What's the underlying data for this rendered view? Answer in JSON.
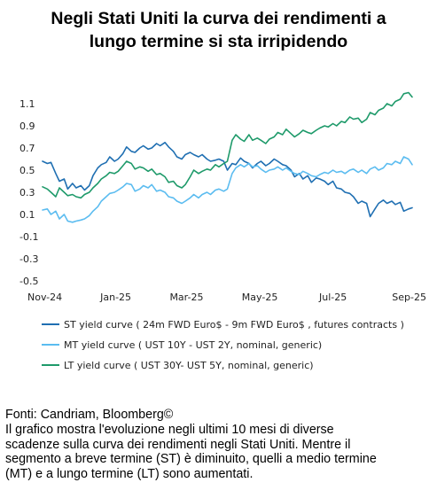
{
  "title_line1": "Negli Stati Uniti la curva dei rendimenti a",
  "title_line2": "lungo termine si sta irripidendo",
  "footer": {
    "source": "Fonti: Candriam, Bloomberg©",
    "lines": [
      "Il grafico mostra l'evoluzione negli ultimi 10 mesi di diverse",
      "scadenze sulla curva dei rendimenti negli Stati Uniti. Mentre il",
      "segmento a breve termine (ST) è diminuito, quelli a medio termine",
      "(MT) e a lungo termine (LT) sono aumentati."
    ]
  },
  "colors": {
    "st": "#1f6fb2",
    "mt": "#5bbcf0",
    "lt": "#1e9a6a"
  },
  "chart_data": {
    "type": "line",
    "title": "Negli Stati Uniti la curva dei rendimenti a lungo termine si sta irripidendo",
    "xlabel": "",
    "ylabel": "",
    "x_ticks": [
      "Nov-24",
      "Jan-25",
      "Mar-25",
      "May-25",
      "Jul-25",
      "Sep-25"
    ],
    "y_ticks": [
      "1.1",
      "0.9",
      "0.7",
      "0.5",
      "0.3",
      "0.1",
      "-0.1",
      "-0.3",
      "-0.5"
    ],
    "ylim": [
      -0.5,
      1.2
    ],
    "xlim": [
      "2024-11-01",
      "2025-09-05"
    ],
    "grid": false,
    "legend_position": "bottom",
    "series": [
      {
        "name": "ST yield curve ( 24m FWD Euro$ - 9m FWD Euro$ , futures contracts )",
        "color": "#1f6fb2",
        "points": [
          [
            "2024-11-01",
            0.58
          ],
          [
            "2024-11-05",
            0.56
          ],
          [
            "2024-11-08",
            0.57
          ],
          [
            "2024-11-12",
            0.47
          ],
          [
            "2024-11-15",
            0.4
          ],
          [
            "2024-11-19",
            0.42
          ],
          [
            "2024-11-22",
            0.33
          ],
          [
            "2024-11-26",
            0.38
          ],
          [
            "2024-11-29",
            0.34
          ],
          [
            "2024-12-03",
            0.36
          ],
          [
            "2024-12-06",
            0.32
          ],
          [
            "2024-12-10",
            0.36
          ],
          [
            "2024-12-13",
            0.45
          ],
          [
            "2024-12-17",
            0.52
          ],
          [
            "2024-12-20",
            0.55
          ],
          [
            "2024-12-24",
            0.57
          ],
          [
            "2024-12-27",
            0.62
          ],
          [
            "2024-12-31",
            0.58
          ],
          [
            "2025-01-03",
            0.6
          ],
          [
            "2025-01-07",
            0.65
          ],
          [
            "2025-01-10",
            0.71
          ],
          [
            "2025-01-14",
            0.67
          ],
          [
            "2025-01-17",
            0.66
          ],
          [
            "2025-01-21",
            0.7
          ],
          [
            "2025-01-24",
            0.72
          ],
          [
            "2025-01-28",
            0.69
          ],
          [
            "2025-01-31",
            0.7
          ],
          [
            "2025-02-04",
            0.74
          ],
          [
            "2025-02-07",
            0.72
          ],
          [
            "2025-02-11",
            0.75
          ],
          [
            "2025-02-14",
            0.71
          ],
          [
            "2025-02-18",
            0.67
          ],
          [
            "2025-02-21",
            0.62
          ],
          [
            "2025-02-25",
            0.6
          ],
          [
            "2025-02-28",
            0.64
          ],
          [
            "2025-03-04",
            0.66
          ],
          [
            "2025-03-07",
            0.64
          ],
          [
            "2025-03-11",
            0.62
          ],
          [
            "2025-03-14",
            0.64
          ],
          [
            "2025-03-18",
            0.6
          ],
          [
            "2025-03-21",
            0.58
          ],
          [
            "2025-03-25",
            0.59
          ],
          [
            "2025-03-28",
            0.6
          ],
          [
            "2025-04-01",
            0.58
          ],
          [
            "2025-04-04",
            0.5
          ],
          [
            "2025-04-08",
            0.56
          ],
          [
            "2025-04-11",
            0.55
          ],
          [
            "2025-04-15",
            0.61
          ],
          [
            "2025-04-18",
            0.58
          ],
          [
            "2025-04-22",
            0.56
          ],
          [
            "2025-04-25",
            0.52
          ],
          [
            "2025-04-29",
            0.56
          ],
          [
            "2025-05-02",
            0.58
          ],
          [
            "2025-05-06",
            0.54
          ],
          [
            "2025-05-09",
            0.56
          ],
          [
            "2025-05-13",
            0.6
          ],
          [
            "2025-05-16",
            0.58
          ],
          [
            "2025-05-20",
            0.55
          ],
          [
            "2025-05-23",
            0.54
          ],
          [
            "2025-05-27",
            0.5
          ],
          [
            "2025-05-30",
            0.44
          ],
          [
            "2025-06-03",
            0.47
          ],
          [
            "2025-06-06",
            0.42
          ],
          [
            "2025-06-10",
            0.45
          ],
          [
            "2025-06-13",
            0.39
          ],
          [
            "2025-06-17",
            0.43
          ],
          [
            "2025-06-20",
            0.42
          ],
          [
            "2025-06-24",
            0.4
          ],
          [
            "2025-06-27",
            0.37
          ],
          [
            "2025-07-01",
            0.4
          ],
          [
            "2025-07-04",
            0.34
          ],
          [
            "2025-07-08",
            0.33
          ],
          [
            "2025-07-11",
            0.3
          ],
          [
            "2025-07-15",
            0.29
          ],
          [
            "2025-07-18",
            0.26
          ],
          [
            "2025-07-22",
            0.2
          ],
          [
            "2025-07-25",
            0.22
          ],
          [
            "2025-07-29",
            0.2
          ],
          [
            "2025-08-01",
            0.08
          ],
          [
            "2025-08-05",
            0.15
          ],
          [
            "2025-08-08",
            0.2
          ],
          [
            "2025-08-12",
            0.23
          ],
          [
            "2025-08-15",
            0.2
          ],
          [
            "2025-08-19",
            0.22
          ],
          [
            "2025-08-22",
            0.19
          ],
          [
            "2025-08-26",
            0.21
          ],
          [
            "2025-08-29",
            0.13
          ],
          [
            "2025-09-02",
            0.15
          ],
          [
            "2025-09-05",
            0.16
          ]
        ]
      },
      {
        "name": "MT yield curve ( UST 10Y - UST 2Y, nominal, generic)",
        "color": "#5bbcf0",
        "points": [
          [
            "2024-11-01",
            0.14
          ],
          [
            "2024-11-05",
            0.15
          ],
          [
            "2024-11-08",
            0.1
          ],
          [
            "2024-11-12",
            0.13
          ],
          [
            "2024-11-15",
            0.06
          ],
          [
            "2024-11-19",
            0.1
          ],
          [
            "2024-11-22",
            0.04
          ],
          [
            "2024-11-26",
            0.03
          ],
          [
            "2024-11-29",
            0.04
          ],
          [
            "2024-12-03",
            0.05
          ],
          [
            "2024-12-06",
            0.06
          ],
          [
            "2024-12-10",
            0.09
          ],
          [
            "2024-12-13",
            0.13
          ],
          [
            "2024-12-17",
            0.17
          ],
          [
            "2024-12-20",
            0.22
          ],
          [
            "2024-12-24",
            0.26
          ],
          [
            "2024-12-27",
            0.29
          ],
          [
            "2024-12-31",
            0.3
          ],
          [
            "2025-01-03",
            0.32
          ],
          [
            "2025-01-07",
            0.35
          ],
          [
            "2025-01-10",
            0.38
          ],
          [
            "2025-01-14",
            0.37
          ],
          [
            "2025-01-17",
            0.31
          ],
          [
            "2025-01-21",
            0.33
          ],
          [
            "2025-01-24",
            0.36
          ],
          [
            "2025-01-28",
            0.34
          ],
          [
            "2025-01-31",
            0.37
          ],
          [
            "2025-02-04",
            0.31
          ],
          [
            "2025-02-07",
            0.32
          ],
          [
            "2025-02-11",
            0.3
          ],
          [
            "2025-02-14",
            0.26
          ],
          [
            "2025-02-18",
            0.25
          ],
          [
            "2025-02-21",
            0.22
          ],
          [
            "2025-02-25",
            0.2
          ],
          [
            "2025-02-28",
            0.22
          ],
          [
            "2025-03-04",
            0.25
          ],
          [
            "2025-03-07",
            0.28
          ],
          [
            "2025-03-11",
            0.25
          ],
          [
            "2025-03-14",
            0.28
          ],
          [
            "2025-03-18",
            0.3
          ],
          [
            "2025-03-21",
            0.28
          ],
          [
            "2025-03-25",
            0.32
          ],
          [
            "2025-03-28",
            0.33
          ],
          [
            "2025-04-01",
            0.31
          ],
          [
            "2025-04-04",
            0.33
          ],
          [
            "2025-04-08",
            0.47
          ],
          [
            "2025-04-11",
            0.52
          ],
          [
            "2025-04-15",
            0.55
          ],
          [
            "2025-04-18",
            0.53
          ],
          [
            "2025-04-22",
            0.56
          ],
          [
            "2025-04-25",
            0.53
          ],
          [
            "2025-04-29",
            0.54
          ],
          [
            "2025-05-02",
            0.51
          ],
          [
            "2025-05-06",
            0.48
          ],
          [
            "2025-05-09",
            0.5
          ],
          [
            "2025-05-13",
            0.51
          ],
          [
            "2025-05-16",
            0.53
          ],
          [
            "2025-05-20",
            0.5
          ],
          [
            "2025-05-23",
            0.52
          ],
          [
            "2025-05-27",
            0.49
          ],
          [
            "2025-05-30",
            0.47
          ],
          [
            "2025-06-03",
            0.46
          ],
          [
            "2025-06-06",
            0.49
          ],
          [
            "2025-06-10",
            0.47
          ],
          [
            "2025-06-13",
            0.45
          ],
          [
            "2025-06-17",
            0.44
          ],
          [
            "2025-06-20",
            0.46
          ],
          [
            "2025-06-24",
            0.48
          ],
          [
            "2025-06-27",
            0.47
          ],
          [
            "2025-07-01",
            0.5
          ],
          [
            "2025-07-04",
            0.48
          ],
          [
            "2025-07-08",
            0.49
          ],
          [
            "2025-07-11",
            0.47
          ],
          [
            "2025-07-15",
            0.5
          ],
          [
            "2025-07-18",
            0.51
          ],
          [
            "2025-07-22",
            0.48
          ],
          [
            "2025-07-25",
            0.5
          ],
          [
            "2025-07-29",
            0.47
          ],
          [
            "2025-08-01",
            0.51
          ],
          [
            "2025-08-05",
            0.53
          ],
          [
            "2025-08-08",
            0.5
          ],
          [
            "2025-08-12",
            0.52
          ],
          [
            "2025-08-15",
            0.56
          ],
          [
            "2025-08-19",
            0.55
          ],
          [
            "2025-08-22",
            0.58
          ],
          [
            "2025-08-26",
            0.56
          ],
          [
            "2025-08-29",
            0.62
          ],
          [
            "2025-09-02",
            0.6
          ],
          [
            "2025-09-05",
            0.55
          ]
        ]
      },
      {
        "name": "LT yield curve ( UST 30Y- UST 5Y, nominal, generic)",
        "color": "#1e9a6a",
        "points": [
          [
            "2024-11-01",
            0.35
          ],
          [
            "2024-11-05",
            0.33
          ],
          [
            "2024-11-08",
            0.3
          ],
          [
            "2024-11-12",
            0.26
          ],
          [
            "2024-11-15",
            0.34
          ],
          [
            "2024-11-19",
            0.3
          ],
          [
            "2024-11-22",
            0.27
          ],
          [
            "2024-11-26",
            0.28
          ],
          [
            "2024-11-29",
            0.26
          ],
          [
            "2024-12-03",
            0.25
          ],
          [
            "2024-12-06",
            0.28
          ],
          [
            "2024-12-10",
            0.3
          ],
          [
            "2024-12-13",
            0.34
          ],
          [
            "2024-12-17",
            0.38
          ],
          [
            "2024-12-20",
            0.42
          ],
          [
            "2024-12-24",
            0.45
          ],
          [
            "2024-12-27",
            0.48
          ],
          [
            "2024-12-31",
            0.47
          ],
          [
            "2025-01-03",
            0.49
          ],
          [
            "2025-01-07",
            0.54
          ],
          [
            "2025-01-10",
            0.58
          ],
          [
            "2025-01-14",
            0.56
          ],
          [
            "2025-01-17",
            0.51
          ],
          [
            "2025-01-21",
            0.53
          ],
          [
            "2025-01-24",
            0.52
          ],
          [
            "2025-01-28",
            0.49
          ],
          [
            "2025-01-31",
            0.51
          ],
          [
            "2025-02-04",
            0.46
          ],
          [
            "2025-02-07",
            0.47
          ],
          [
            "2025-02-11",
            0.44
          ],
          [
            "2025-02-14",
            0.39
          ],
          [
            "2025-02-18",
            0.4
          ],
          [
            "2025-02-21",
            0.36
          ],
          [
            "2025-02-25",
            0.34
          ],
          [
            "2025-02-28",
            0.37
          ],
          [
            "2025-03-04",
            0.44
          ],
          [
            "2025-03-07",
            0.5
          ],
          [
            "2025-03-11",
            0.47
          ],
          [
            "2025-03-14",
            0.49
          ],
          [
            "2025-03-18",
            0.51
          ],
          [
            "2025-03-21",
            0.5
          ],
          [
            "2025-03-25",
            0.55
          ],
          [
            "2025-03-28",
            0.53
          ],
          [
            "2025-04-01",
            0.56
          ],
          [
            "2025-04-04",
            0.58
          ],
          [
            "2025-04-08",
            0.77
          ],
          [
            "2025-04-11",
            0.82
          ],
          [
            "2025-04-15",
            0.78
          ],
          [
            "2025-04-18",
            0.76
          ],
          [
            "2025-04-22",
            0.82
          ],
          [
            "2025-04-25",
            0.77
          ],
          [
            "2025-04-29",
            0.79
          ],
          [
            "2025-05-02",
            0.77
          ],
          [
            "2025-05-06",
            0.74
          ],
          [
            "2025-05-09",
            0.78
          ],
          [
            "2025-05-13",
            0.8
          ],
          [
            "2025-05-16",
            0.84
          ],
          [
            "2025-05-20",
            0.82
          ],
          [
            "2025-05-23",
            0.87
          ],
          [
            "2025-05-27",
            0.83
          ],
          [
            "2025-05-30",
            0.8
          ],
          [
            "2025-06-03",
            0.83
          ],
          [
            "2025-06-06",
            0.86
          ],
          [
            "2025-06-10",
            0.84
          ],
          [
            "2025-06-13",
            0.83
          ],
          [
            "2025-06-17",
            0.86
          ],
          [
            "2025-06-20",
            0.88
          ],
          [
            "2025-06-24",
            0.9
          ],
          [
            "2025-06-27",
            0.89
          ],
          [
            "2025-07-01",
            0.92
          ],
          [
            "2025-07-04",
            0.9
          ],
          [
            "2025-07-08",
            0.94
          ],
          [
            "2025-07-11",
            0.93
          ],
          [
            "2025-07-15",
            0.98
          ],
          [
            "2025-07-18",
            0.96
          ],
          [
            "2025-07-22",
            0.97
          ],
          [
            "2025-07-25",
            0.93
          ],
          [
            "2025-07-29",
            0.96
          ],
          [
            "2025-08-01",
            1.02
          ],
          [
            "2025-08-05",
            1.0
          ],
          [
            "2025-08-08",
            1.04
          ],
          [
            "2025-08-12",
            1.06
          ],
          [
            "2025-08-15",
            1.1
          ],
          [
            "2025-08-19",
            1.08
          ],
          [
            "2025-08-22",
            1.12
          ],
          [
            "2025-08-26",
            1.14
          ],
          [
            "2025-08-29",
            1.19
          ],
          [
            "2025-09-02",
            1.2
          ],
          [
            "2025-09-05",
            1.16
          ]
        ]
      }
    ]
  }
}
